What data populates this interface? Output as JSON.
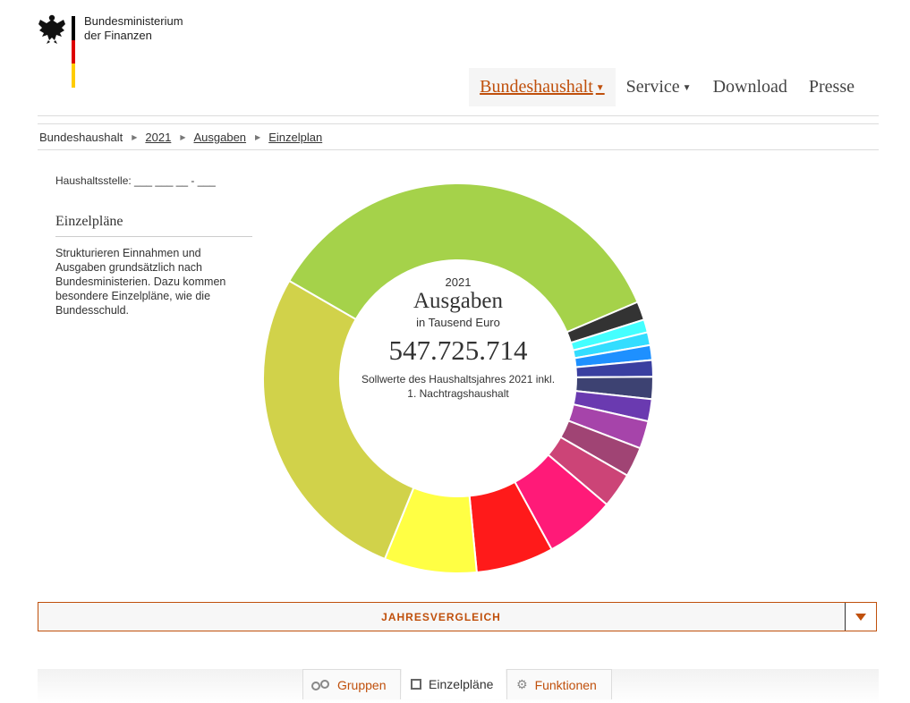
{
  "header": {
    "ministry_line1": "Bundesministerium",
    "ministry_line2": "der Finanzen",
    "flag_colors": [
      "#000000",
      "#dd0000",
      "#ffcc00"
    ]
  },
  "nav": {
    "items": [
      {
        "label": "Bundeshaushalt",
        "dropdown": true,
        "active": true
      },
      {
        "label": "Service",
        "dropdown": true,
        "active": false
      },
      {
        "label": "Download",
        "dropdown": false,
        "active": false
      },
      {
        "label": "Presse",
        "dropdown": false,
        "active": false
      }
    ]
  },
  "breadcrumb": [
    "Bundeshaushalt",
    "2021",
    "Ausgaben",
    "Einzelplan"
  ],
  "sidebar": {
    "haushaltsstelle": "Haushaltsstelle: ___ ___ __ - ___",
    "title": "Einzelpläne",
    "text": "Strukturieren Einnahmen und Ausgaben grundsätzlich nach Bundesministerien. Dazu kommen besondere Einzelpläne, wie die Bundesschuld."
  },
  "center": {
    "year": "2021",
    "title": "Ausgaben",
    "unit": "in Tausend Euro",
    "total": "547.725.714",
    "note_line1": "Sollwerte des Haushaltsjahres 2021 inkl.",
    "note_line2": "1. Nachtragshaushalt"
  },
  "chart_data": {
    "type": "pie",
    "donut": true,
    "total": 547725714,
    "slices": [
      {
        "color": "#a5d24a",
        "value": 174.8
      },
      {
        "color": "#333333",
        "value": 7.6
      },
      {
        "color": "#44ffff",
        "value": 5.3
      },
      {
        "color": "#33ddff",
        "value": 5.3
      },
      {
        "color": "#1e90ff",
        "value": 6.1
      },
      {
        "color": "#3a3fa0",
        "value": 6.8
      },
      {
        "color": "#3d4272",
        "value": 9.1
      },
      {
        "color": "#6a3ab0",
        "value": 9.1
      },
      {
        "color": "#a644aa",
        "value": 11.4
      },
      {
        "color": "#a04474",
        "value": 12.2
      },
      {
        "color": "#cc4477",
        "value": 14.4
      },
      {
        "color": "#ff1a78",
        "value": 28.9
      },
      {
        "color": "#ff1a1a",
        "value": 31.9
      },
      {
        "color": "#ffff44",
        "value": 38.0
      },
      {
        "color": "#d1d24a",
        "value": 134.8
      }
    ]
  },
  "jahresvergleich": {
    "label": "JAHRESVERGLEICH"
  },
  "tabs": [
    {
      "label": "Gruppen",
      "icon": "link-icon",
      "active": false
    },
    {
      "label": "Einzelpläne",
      "icon": "square-icon",
      "active": true
    },
    {
      "label": "Funktionen",
      "icon": "gear-icon",
      "active": false
    }
  ],
  "colors": {
    "accent": "#c0500c"
  }
}
